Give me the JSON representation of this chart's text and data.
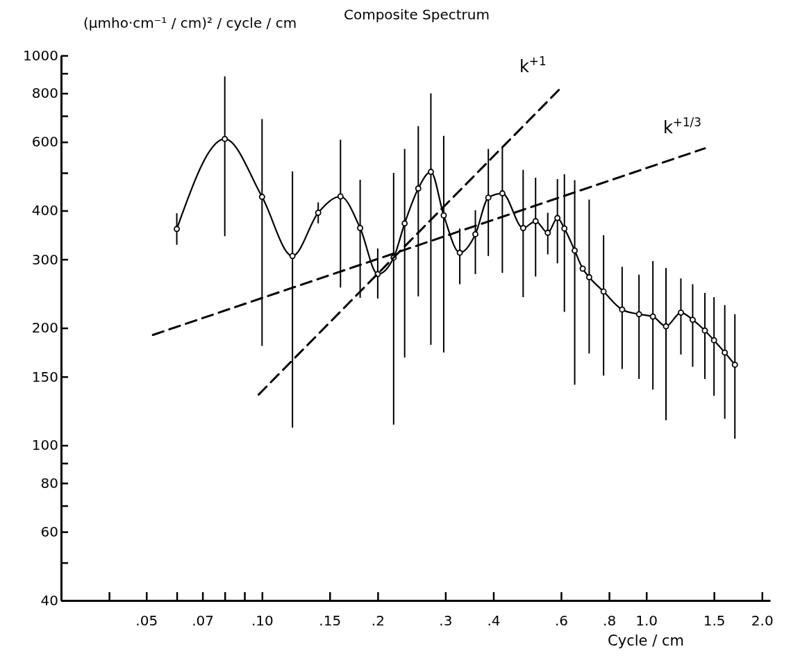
{
  "chart_data": {
    "type": "line",
    "title": "Composite  Spectrum",
    "xlabel": "Cycle / cm",
    "ylabel": "(µmho·cm⁻¹ / cm)² / cycle / cm",
    "log": "xy",
    "grid": false,
    "xlim": [
      0.03,
      2.1
    ],
    "ylim": [
      40,
      1000
    ],
    "xticks": [
      {
        "value": 0.04,
        "label": null
      },
      {
        "value": 0.05,
        "label": ".05"
      },
      {
        "value": 0.06,
        "label": null
      },
      {
        "value": 0.07,
        "label": ".07"
      },
      {
        "value": 0.08,
        "label": null
      },
      {
        "value": 0.09,
        "label": null
      },
      {
        "value": 0.1,
        "label": ".10"
      },
      {
        "value": 0.15,
        "label": ".15"
      },
      {
        "value": 0.2,
        "label": ".2"
      },
      {
        "value": 0.3,
        "label": ".3"
      },
      {
        "value": 0.4,
        "label": ".4"
      },
      {
        "value": 0.6,
        "label": ".6"
      },
      {
        "value": 0.8,
        "label": ".8"
      },
      {
        "value": 1.0,
        "label": "1.0"
      },
      {
        "value": 1.5,
        "label": "1.5"
      },
      {
        "value": 2.0,
        "label": "2.0"
      }
    ],
    "yticks": [
      40,
      {
        "value": 50,
        "label": null
      },
      60,
      {
        "value": 70,
        "label": null
      },
      80,
      {
        "value": 90,
        "label": null
      },
      100,
      150,
      200,
      300,
      400,
      {
        "value": 500,
        "label": null
      },
      600,
      {
        "value": 700,
        "label": null
      },
      800,
      {
        "value": 900,
        "label": null
      },
      1000
    ],
    "annotations": [
      "k$^{+1}$",
      "k$^{+1/3}$"
    ],
    "series": [
      {
        "color": "#000000",
        "marker": "circle",
        "line_style": "solid",
        "x": [
          0.06,
          0.08,
          0.1,
          0.12,
          0.14,
          0.16,
          0.18,
          0.2,
          0.22,
          0.235,
          0.255,
          0.275,
          0.297,
          0.327,
          0.359,
          0.388,
          0.422,
          0.478,
          0.515,
          0.554,
          0.587,
          0.612,
          0.651,
          0.683,
          0.71,
          0.774,
          0.865,
          0.957,
          1.04,
          1.125,
          1.23,
          1.32,
          1.42,
          1.5,
          1.6,
          1.7
        ],
        "values": [
          359,
          611,
          434,
          306,
          395,
          435,
          361,
          275,
          303,
          371,
          456,
          503,
          389,
          312,
          348,
          432,
          443,
          361,
          376,
          351,
          383,
          360,
          316,
          284,
          270,
          248,
          223,
          217,
          214,
          202,
          219,
          210,
          197,
          186,
          173,
          161
        ],
        "errors": [
          [
            327,
            394
          ],
          [
            344,
            884
          ],
          [
            180,
            687
          ],
          [
            111,
            504
          ],
          [
            371,
            420
          ],
          [
            254,
            608
          ],
          [
            239,
            480
          ],
          [
            238,
            320
          ],
          [
            113,
            500
          ],
          [
            168,
            576
          ],
          [
            241,
            659
          ],
          [
            181,
            800
          ],
          [
            173,
            622
          ],
          [
            259,
            360
          ],
          [
            275,
            401
          ],
          [
            306,
            576
          ],
          [
            277,
            580
          ],
          [
            240,
            509
          ],
          [
            271,
            486
          ],
          [
            309,
            395
          ],
          [
            293,
            482
          ],
          [
            220,
            496
          ],
          [
            143,
            479
          ],
          null,
          [
            172,
            427
          ],
          [
            151,
            346
          ],
          [
            157,
            287
          ],
          [
            148,
            274
          ],
          [
            139,
            297
          ],
          [
            116,
            285
          ],
          [
            171,
            268
          ],
          [
            159,
            259
          ],
          [
            148,
            246
          ],
          [
            134,
            240
          ],
          [
            117,
            229
          ],
          [
            104,
            217
          ]
        ]
      },
      {
        "color": "#000000",
        "marker": "none",
        "line_style": "dashed",
        "x": [
          0.098,
          0.6
        ],
        "values": [
          135,
          827
        ]
      },
      {
        "color": "#000000",
        "marker": "none",
        "line_style": "dashed",
        "x": [
          0.052,
          1.42
        ],
        "values": [
          192,
          578
        ]
      }
    ]
  }
}
